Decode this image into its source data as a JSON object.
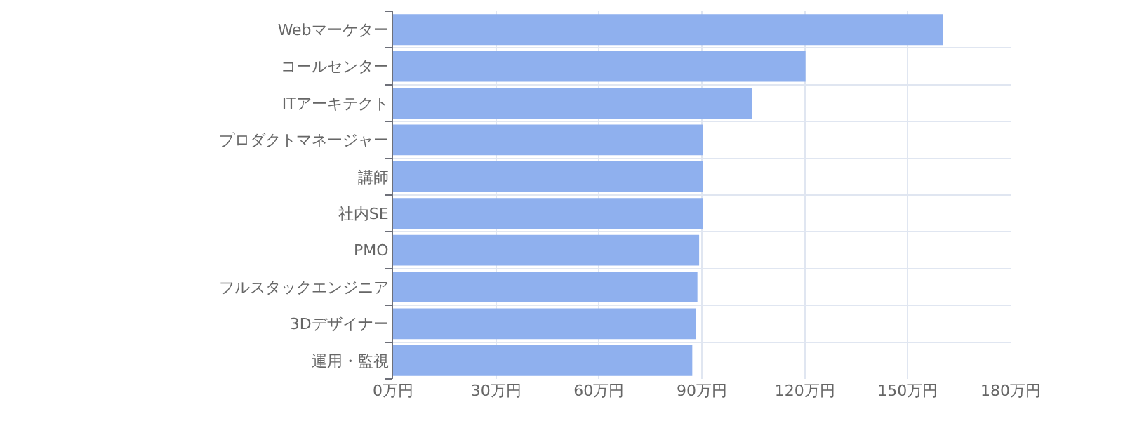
{
  "chart_data": {
    "type": "bar",
    "orientation": "horizontal",
    "categories": [
      "Webマーケター",
      "コールセンター",
      "ITアーキテクト",
      "プロダクトマネージャー",
      "講師",
      "社内SE",
      "PMO",
      "フルスタックエンジニア",
      "3Dデザイナー",
      "運用・監視"
    ],
    "values": [
      160,
      120,
      104.5,
      90,
      90,
      90,
      89,
      88.5,
      88,
      87
    ],
    "color": "#8fb0ee",
    "xlim": [
      0,
      180
    ],
    "xticks": [
      {
        "value": 0,
        "label": "0万円"
      },
      {
        "value": 30,
        "label": "30万円"
      },
      {
        "value": 60,
        "label": "60万円"
      },
      {
        "value": 90,
        "label": "90万円"
      },
      {
        "value": 120,
        "label": "120万円"
      },
      {
        "value": 150,
        "label": "150万円"
      },
      {
        "value": 180,
        "label": "180万円"
      }
    ],
    "grid": true
  }
}
